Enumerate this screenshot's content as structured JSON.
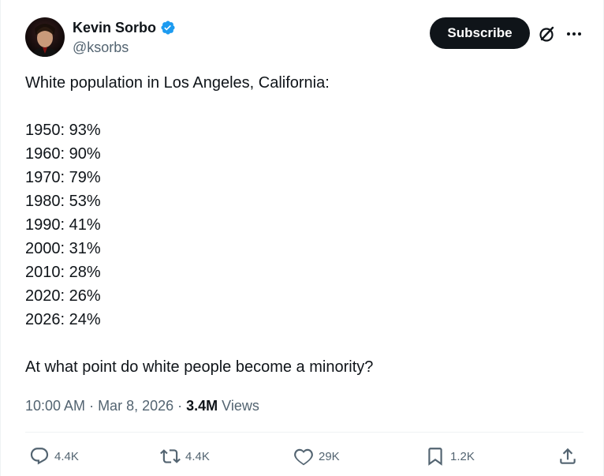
{
  "author": {
    "display_name": "Kevin Sorbo",
    "handle": "@ksorbs",
    "verified": true
  },
  "header": {
    "subscribe_label": "Subscribe"
  },
  "post": {
    "lines": [
      "White population in Los Angeles, California:",
      "",
      "1950: 93%",
      "1960: 90%",
      "1970: 79%",
      "1980: 53%",
      "1990: 41%",
      "2000: 31%",
      "2010: 28%",
      "2020: 26%",
      "2026: 24%",
      "",
      "At what point do white people become a minority?"
    ]
  },
  "meta": {
    "time": "10:00 AM",
    "separator": " · ",
    "date": "Mar 8, 2026",
    "views_count": "3.4M",
    "views_label": " Views"
  },
  "actions": {
    "replies": "4.4K",
    "reposts": "4.4K",
    "likes": "29K",
    "bookmarks": "1.2K"
  },
  "colors": {
    "text": "#0f1419",
    "secondary": "#536471",
    "verified": "#1d9bf0",
    "button_bg": "#0f1419"
  },
  "icons": [
    "verified-badge-icon",
    "grok-icon",
    "more-icon",
    "reply-icon",
    "repost-icon",
    "like-icon",
    "bookmark-icon",
    "share-icon"
  ]
}
